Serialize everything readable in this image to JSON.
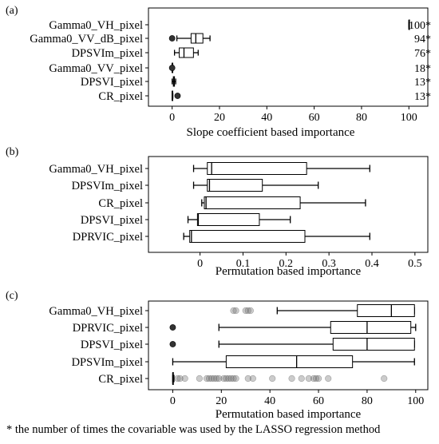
{
  "chart_data": [
    {
      "panel": "(a)",
      "type": "boxplot",
      "orientation": "horizontal",
      "xlabel": "Slope coefficient based importance",
      "xlim": [
        -10,
        108
      ],
      "xticks": [
        0,
        20,
        40,
        60,
        80,
        100
      ],
      "categories": [
        "Gamma0_VH_pixel",
        "Gamma0_VV_dB_pixel",
        "DPSVIm_pixel",
        "Gamma0_VV_pixel",
        "DPSVI_pixel",
        "CR_pixel"
      ],
      "counts": [
        "100*",
        "94*",
        "76*",
        "18*",
        "13*",
        "13*"
      ],
      "boxes": [
        {
          "min": 100,
          "q1": 100,
          "median": 100,
          "q3": 100,
          "max": 100,
          "outliers": []
        },
        {
          "min": 2,
          "q1": 8,
          "median": 10,
          "q3": 13,
          "max": 16,
          "outliers": [
            0
          ]
        },
        {
          "min": 1,
          "q1": 3,
          "median": 5,
          "q3": 9,
          "max": 11,
          "outliers": []
        },
        {
          "min": 0,
          "q1": 0,
          "median": 0,
          "q3": 0,
          "max": 0.5,
          "outliers": [
            0
          ]
        },
        {
          "min": 0,
          "q1": 0.5,
          "median": 0.8,
          "q3": 1,
          "max": 1.5,
          "outliers": []
        },
        {
          "min": 0,
          "q1": 0,
          "median": 0,
          "q3": 0,
          "max": 0.3,
          "outliers": [
            2.3
          ]
        }
      ]
    },
    {
      "panel": "(b)",
      "type": "boxplot",
      "orientation": "horizontal",
      "xlabel": "Permutation based importance",
      "xlim": [
        -0.12,
        0.53
      ],
      "xticks": [
        "0",
        "0.1",
        "0.2",
        "0.3",
        "0.4",
        "0.5"
      ],
      "categories": [
        "Gamma0_VH_pixel",
        "DPSVIm_pixel",
        "CR_pixel",
        "DPSVI_pixel",
        "DPRVIC_pixel"
      ],
      "boxes": [
        {
          "min": -0.015,
          "q1": 0.017,
          "median": 0.027,
          "q3": 0.248,
          "max": 0.395
        },
        {
          "min": -0.015,
          "q1": 0.017,
          "median": 0.022,
          "q3": 0.145,
          "max": 0.275
        },
        {
          "min": 0.004,
          "q1": 0.01,
          "median": 0.014,
          "q3": 0.233,
          "max": 0.385
        },
        {
          "min": -0.028,
          "q1": -0.006,
          "median": -0.004,
          "q3": 0.138,
          "max": 0.21
        },
        {
          "min": -0.038,
          "q1": -0.024,
          "median": -0.02,
          "q3": 0.244,
          "max": 0.395
        }
      ]
    },
    {
      "panel": "(c)",
      "type": "boxplot",
      "orientation": "horizontal",
      "xlabel": "Permutation based importance",
      "xlim": [
        -10,
        105
      ],
      "xticks": [
        0,
        20,
        40,
        60,
        80,
        100
      ],
      "categories": [
        "Gamma0_VH_pixel",
        "DPRVIC_pixel",
        "DPSVI_pixel",
        "DPSVIm_pixel",
        "CR_pixel"
      ],
      "boxes": [
        {
          "min": 43,
          "q1": 76,
          "median": 90,
          "q3": 99.5,
          "max": 99.5,
          "outliers": [
            25,
            26,
            30,
            31,
            32
          ]
        },
        {
          "min": 19,
          "q1": 65,
          "median": 80,
          "q3": 98,
          "max": 100,
          "outliers": [
            0
          ]
        },
        {
          "min": 19,
          "q1": 66,
          "median": 80,
          "q3": 99.5,
          "max": 99.5,
          "outliers": [
            0
          ]
        },
        {
          "min": 0,
          "q1": 22,
          "median": 51,
          "q3": 74,
          "max": 99.5,
          "outliers": []
        },
        {
          "min": 0,
          "q1": 0,
          "median": 0,
          "q3": 0,
          "max": 0.5,
          "outliers": [
            2,
            3,
            5,
            11,
            14,
            15,
            16,
            17,
            18,
            19,
            21,
            22,
            23,
            24,
            25,
            26,
            31,
            33,
            41,
            49,
            53,
            56,
            58,
            59,
            60,
            64,
            87
          ]
        }
      ]
    }
  ],
  "footnote": "* the number of times the covariable was used by the LASSO regression method"
}
